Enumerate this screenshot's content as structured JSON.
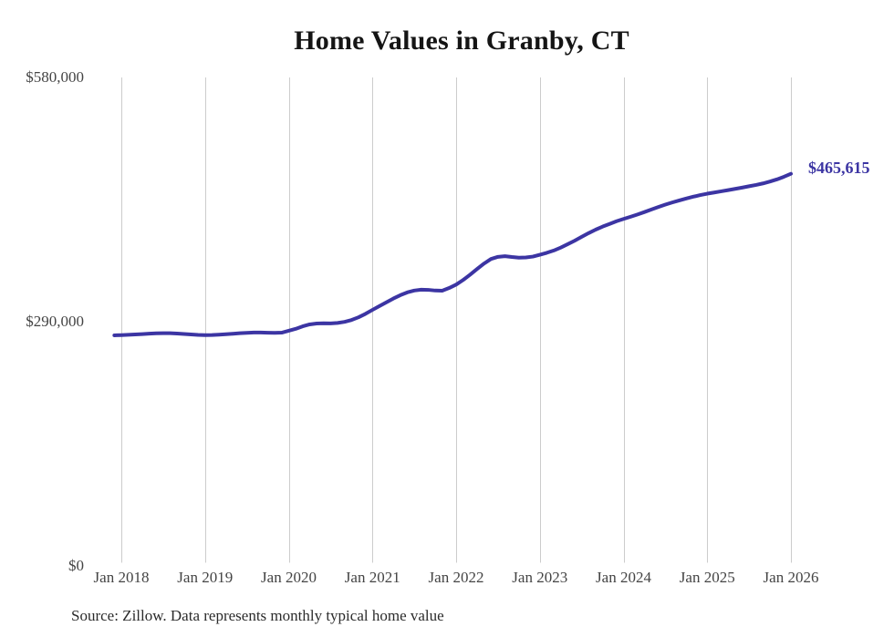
{
  "chart_data": {
    "type": "line",
    "title": "Home Values in Granby, CT",
    "source_note": "Source: Zillow. Data represents monthly typical home value",
    "end_label": "$465,615",
    "latest_value": 465615,
    "latest_period": "Jan 2026",
    "ylim": [
      0,
      580000
    ],
    "y_ticks": [
      {
        "value": 580000,
        "label": "$580,000"
      },
      {
        "value": 290000,
        "label": "$290,000"
      },
      {
        "value": 0,
        "label": "$0"
      }
    ],
    "x_tick_labels": [
      "Jan 2018",
      "Jan 2019",
      "Jan 2020",
      "Jan 2021",
      "Jan 2022",
      "Jan 2023",
      "Jan 2024",
      "Jan 2025",
      "Jan 2026"
    ],
    "grid": "vertical-only",
    "legend": "none",
    "colors": {
      "line": "#3c35a3",
      "end_label": "#3c35a3",
      "gridline": "#cccccc",
      "tick_text": "#444444",
      "title_text": "#151515"
    },
    "series": [
      {
        "name": "Typical home value (monthly)",
        "frequency": "monthly",
        "start": "Dec 2017",
        "end": "Jan 2026",
        "values": [
          273800,
          274100,
          274400,
          274800,
          275300,
          275800,
          276200,
          276400,
          276300,
          275900,
          275400,
          274800,
          274300,
          274100,
          274200,
          274600,
          275100,
          275700,
          276300,
          276800,
          277100,
          277100,
          276900,
          276800,
          277000,
          279200,
          281500,
          284500,
          286800,
          287800,
          288100,
          288000,
          288500,
          289800,
          292000,
          295200,
          299300,
          304000,
          308500,
          313000,
          317500,
          321500,
          324800,
          327000,
          328000,
          327800,
          327000,
          326800,
          330000,
          334000,
          339500,
          345800,
          352500,
          359000,
          364500,
          367000,
          367800,
          366800,
          366000,
          366300,
          367300,
          369500,
          371800,
          374500,
          378000,
          382000,
          386200,
          390800,
          395200,
          399300,
          402900,
          406100,
          409300,
          412000,
          414600,
          417300,
          420200,
          423200,
          426200,
          429000,
          431600,
          434000,
          436300,
          438400,
          440300,
          442000,
          443400,
          444800,
          446200,
          447700,
          449200,
          450800,
          452400,
          454200,
          456400,
          459000,
          462100,
          465615
        ]
      }
    ]
  }
}
